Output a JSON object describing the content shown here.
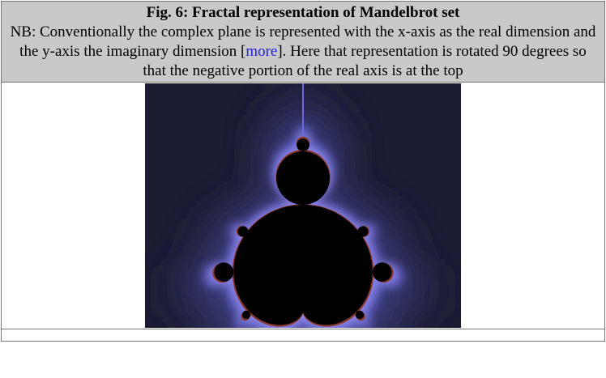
{
  "figure": {
    "title": "Fig. 6: Fractal representation of Mandelbrot set",
    "note": {
      "before": "NB: Conventionally the complex plane is represented with the x-axis as the real dimension and the y-axis the imaginary dimension [",
      "link": "more",
      "after": "]. Here that representation is rotated 90 degrees so that the negative portion of the real axis is at the top"
    }
  }
}
